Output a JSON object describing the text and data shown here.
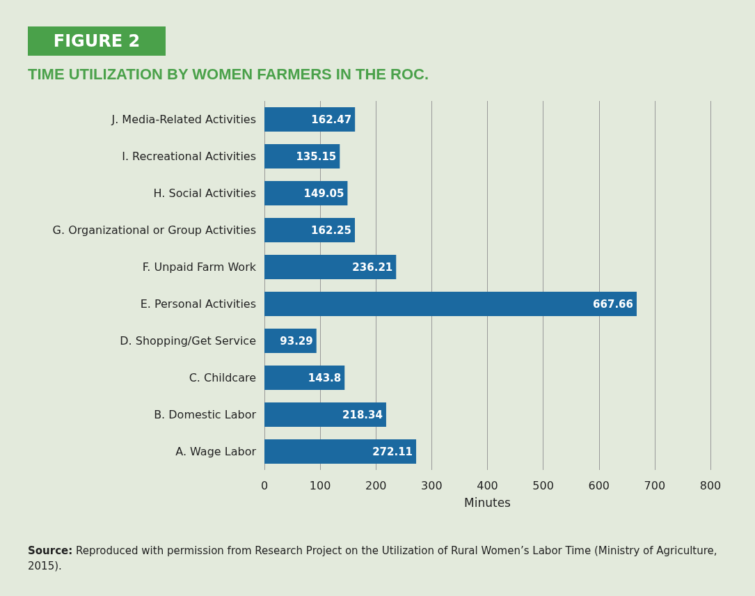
{
  "chart_data": {
    "type": "bar",
    "orientation": "horizontal",
    "subtitle": "FIGURE 2",
    "title": "TIME UTILIZATION BY WOMEN FARMERS IN THE ROC.",
    "categories": [
      "J. Media-Related Activities",
      "I. Recreational Activities",
      "H. Social Activities",
      "G. Organizational or Group Activities",
      "F. Unpaid Farm Work",
      "E. Personal Activities",
      "D. Shopping/Get Service",
      "C. Childcare",
      "B. Domestic Labor",
      "A. Wage Labor"
    ],
    "values": [
      162.47,
      135.15,
      149.05,
      162.25,
      236.21,
      667.66,
      93.29,
      143.8,
      218.34,
      272.11
    ],
    "color": "#1b69a0",
    "data_labels": true,
    "xlabel": "Minutes",
    "xlim": [
      0,
      800
    ],
    "xticks": [
      0,
      100,
      200,
      300,
      400,
      500,
      600,
      700,
      800
    ],
    "grid": "x",
    "annotations": [
      "Source: Reproduced with permission from Research Project on the Utilization of Rural Women’s Labor Time (Ministry of Agriculture, 2015)."
    ]
  }
}
